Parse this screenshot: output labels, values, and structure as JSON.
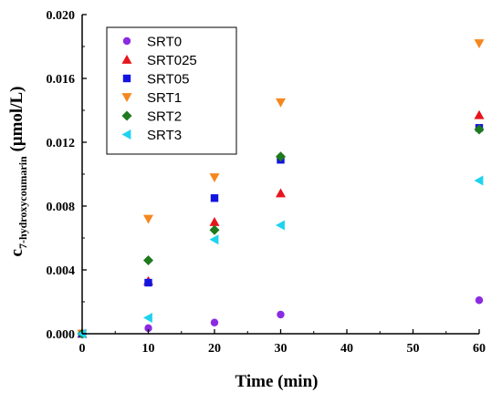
{
  "chart_data": {
    "type": "scatter",
    "title": "",
    "xlabel": "Time (min)",
    "ylabel_main": "c",
    "ylabel_sub": "7-hydroxycoumarin",
    "ylabel_unit": " (μmol/L)",
    "xlim": [
      0,
      60
    ],
    "ylim": [
      0,
      0.02
    ],
    "x_ticks": [
      0,
      10,
      20,
      30,
      40,
      50,
      60
    ],
    "y_ticks": [
      0.0,
      0.004,
      0.008,
      0.012,
      0.016,
      0.02
    ],
    "y_tick_labels": [
      "0.000",
      "0.004",
      "0.008",
      "0.012",
      "0.016",
      "0.020"
    ],
    "grid": false,
    "legend_position": "top-left",
    "series": [
      {
        "name": "SRT0",
        "color": "#8a2be2",
        "marker": "circle",
        "x": [
          0,
          10,
          20,
          30,
          60
        ],
        "y": [
          0.0,
          0.00035,
          0.0007,
          0.0012,
          0.0021
        ]
      },
      {
        "name": "SRT025",
        "color": "#e8141b",
        "marker": "triangle-up",
        "x": [
          0,
          10,
          20,
          30,
          60
        ],
        "y": [
          0.0,
          0.0033,
          0.007,
          0.0088,
          0.0137
        ]
      },
      {
        "name": "SRT05",
        "color": "#1414e0",
        "marker": "square",
        "x": [
          0,
          10,
          20,
          30,
          60
        ],
        "y": [
          0.0,
          0.0032,
          0.0085,
          0.0109,
          0.0129
        ]
      },
      {
        "name": "SRT1",
        "color": "#f5871f",
        "marker": "triangle-down",
        "x": [
          0,
          10,
          20,
          30,
          60
        ],
        "y": [
          0.0,
          0.0072,
          0.0098,
          0.0145,
          0.0182
        ]
      },
      {
        "name": "SRT2",
        "color": "#1e7a1e",
        "marker": "diamond",
        "x": [
          0,
          10,
          20,
          30,
          60
        ],
        "y": [
          0.0,
          0.0046,
          0.0065,
          0.0111,
          0.0128
        ]
      },
      {
        "name": "SRT3",
        "color": "#1fd3f0",
        "marker": "triangle-left",
        "x": [
          0,
          10,
          20,
          30,
          60
        ],
        "y": [
          0.0,
          0.001,
          0.0059,
          0.0068,
          0.0096
        ]
      }
    ]
  }
}
